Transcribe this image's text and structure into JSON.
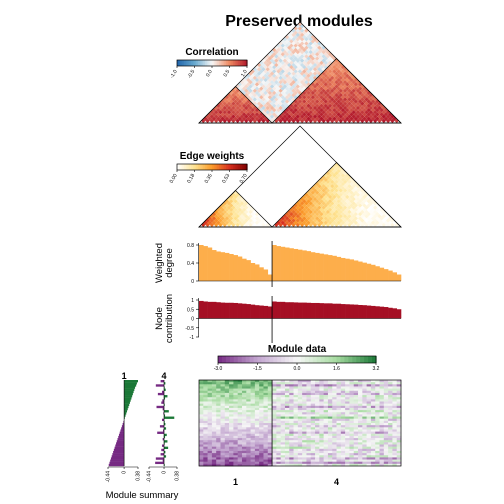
{
  "chart_data": {
    "type": "heatmap",
    "title": "Preserved modules",
    "modules": [
      "1",
      "4"
    ],
    "module_sizes": [
      17,
      30
    ],
    "correlation": {
      "legend_title": "Correlation",
      "ticks": [
        "-1.0",
        "-0.5",
        "0.0",
        "0.5",
        "1.0"
      ],
      "range": [
        -1,
        1
      ],
      "colors": [
        "#2166ac",
        "#67a9cf",
        "#f7f7f7",
        "#ef8a62",
        "#b2182b"
      ]
    },
    "edge_weights": {
      "legend_title": "Edge weights",
      "ticks": [
        "0.00",
        "0.18",
        "0.35",
        "0.53",
        "0.70"
      ],
      "range": [
        0,
        0.7
      ],
      "colors": [
        "#ffffff",
        "#fee391",
        "#fb9a29",
        "#d7301f",
        "#7f0000"
      ]
    },
    "weighted_degree": {
      "ylabel": "Weighted degree",
      "yticks": [
        "0",
        "0.4",
        "0.8"
      ],
      "ylim": [
        0,
        1
      ],
      "color": "#fdae4b",
      "values": [
        1.0,
        0.97,
        0.93,
        0.86,
        0.82,
        0.8,
        0.78,
        0.75,
        0.72,
        0.68,
        0.62,
        0.58,
        0.5,
        0.46,
        0.38,
        0.32,
        0.18,
        1.0,
        0.97,
        0.95,
        0.93,
        0.91,
        0.89,
        0.87,
        0.85,
        0.83,
        0.8,
        0.78,
        0.76,
        0.74,
        0.72,
        0.7,
        0.67,
        0.64,
        0.62,
        0.6,
        0.57,
        0.54,
        0.51,
        0.48,
        0.45,
        0.41,
        0.37,
        0.33,
        0.29,
        0.24,
        0.18
      ]
    },
    "node_contribution": {
      "ylabel": "Node contribution",
      "yticks": [
        "-1",
        "-0.5",
        "0",
        "0.5",
        "1"
      ],
      "ylim": [
        -1,
        1
      ],
      "color": "#a50f24",
      "values": [
        0.95,
        0.92,
        0.9,
        0.9,
        0.88,
        0.86,
        0.85,
        0.85,
        0.84,
        0.82,
        0.8,
        0.78,
        0.75,
        0.72,
        0.7,
        0.68,
        0.65,
        0.92,
        0.9,
        0.9,
        0.88,
        0.88,
        0.87,
        0.86,
        0.86,
        0.85,
        0.84,
        0.84,
        0.83,
        0.82,
        0.82,
        0.8,
        0.8,
        0.78,
        0.77,
        0.76,
        0.75,
        0.73,
        0.72,
        0.7,
        0.68,
        0.66,
        0.64,
        0.62,
        0.58,
        0.55,
        0.5
      ]
    },
    "module_data": {
      "legend_title": "Module data",
      "ticks": [
        "-3.0",
        "-1.5",
        "0.0",
        "1.6",
        "3.2"
      ],
      "range": [
        -3,
        3.2
      ],
      "colors": [
        "#762a83",
        "#c2a5cf",
        "#f7f7f7",
        "#a6dba0",
        "#1b7837"
      ],
      "n_samples": 40
    },
    "module_summary": {
      "xlabel": "Module summary",
      "xticks": [
        "-0.44",
        "0",
        "0.38"
      ],
      "xlim": [
        -0.44,
        0.38
      ],
      "colors": [
        "#762a83",
        "#1b7837"
      ],
      "values_1": [
        0.38,
        0.35,
        0.33,
        0.3,
        0.28,
        0.26,
        0.24,
        0.22,
        0.2,
        0.18,
        0.16,
        0.14,
        0.12,
        0.1,
        0.08,
        0.06,
        0.04,
        0.02,
        0.0,
        -0.02,
        -0.04,
        -0.06,
        -0.08,
        -0.1,
        -0.12,
        -0.14,
        -0.16,
        -0.18,
        -0.2,
        -0.22,
        -0.24,
        -0.26,
        -0.28,
        -0.3,
        -0.32,
        -0.34,
        -0.36,
        -0.38,
        -0.4,
        -0.42
      ],
      "values_4": [
        -0.1,
        0.04,
        -0.24,
        0.02,
        0.05,
        -0.06,
        -0.18,
        0.1,
        0.03,
        -0.05,
        -0.08,
        0.02,
        -0.22,
        -0.04,
        0.14,
        -0.02,
        0.03,
        0.3,
        -0.06,
        0.02,
        0.04,
        -0.12,
        0.06,
        -0.03,
        -0.2,
        0.08,
        0.03,
        -0.04,
        0.1,
        0.02,
        -0.06,
        0.12,
        -0.08,
        0.04,
        -0.1,
        0.06,
        -0.24,
        -0.04,
        -0.26,
        0.02
      ]
    }
  }
}
